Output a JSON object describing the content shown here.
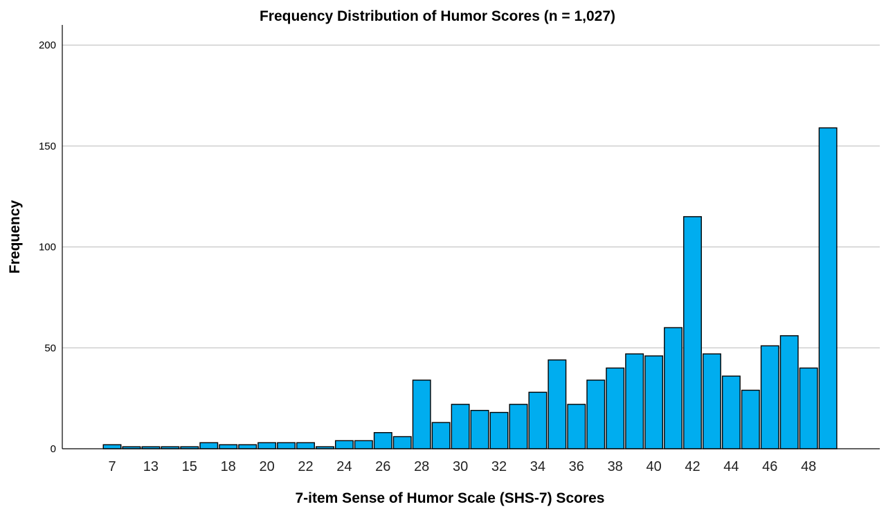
{
  "chart_data": {
    "type": "bar",
    "title": "Frequency Distribution of Humor Scores (n = 1,027)",
    "xlabel": "7-item Sense of Humor Scale (SHS-7) Scores",
    "ylabel": "Frequency",
    "ylim": [
      0,
      210
    ],
    "yticks": [
      0,
      50,
      100,
      150,
      200
    ],
    "grid": true,
    "bar_color": "#00adef",
    "categories": [
      "7",
      "12",
      "13",
      "14",
      "15",
      "16",
      "18",
      "19",
      "20",
      "21",
      "22",
      "23",
      "24",
      "25",
      "26",
      "27",
      "28",
      "29",
      "30",
      "31",
      "32",
      "33",
      "34",
      "35",
      "36",
      "37",
      "38",
      "39",
      "40",
      "41",
      "42",
      "43",
      "44",
      "45",
      "46",
      "47",
      "48",
      "49"
    ],
    "tick_labels": [
      "7",
      "",
      "13",
      "",
      "15",
      "",
      "18",
      "",
      "20",
      "",
      "22",
      "",
      "24",
      "",
      "26",
      "",
      "28",
      "",
      "30",
      "",
      "32",
      "",
      "34",
      "",
      "36",
      "",
      "38",
      "",
      "40",
      "",
      "42",
      "",
      "44",
      "",
      "46",
      "",
      "48",
      ""
    ],
    "values": [
      2,
      1,
      1,
      1,
      1,
      3,
      2,
      2,
      3,
      3,
      3,
      1,
      4,
      4,
      8,
      6,
      34,
      13,
      22,
      19,
      18,
      22,
      28,
      44,
      22,
      34,
      40,
      47,
      46,
      60,
      115,
      47,
      36,
      29,
      51,
      56,
      40,
      159
    ]
  }
}
